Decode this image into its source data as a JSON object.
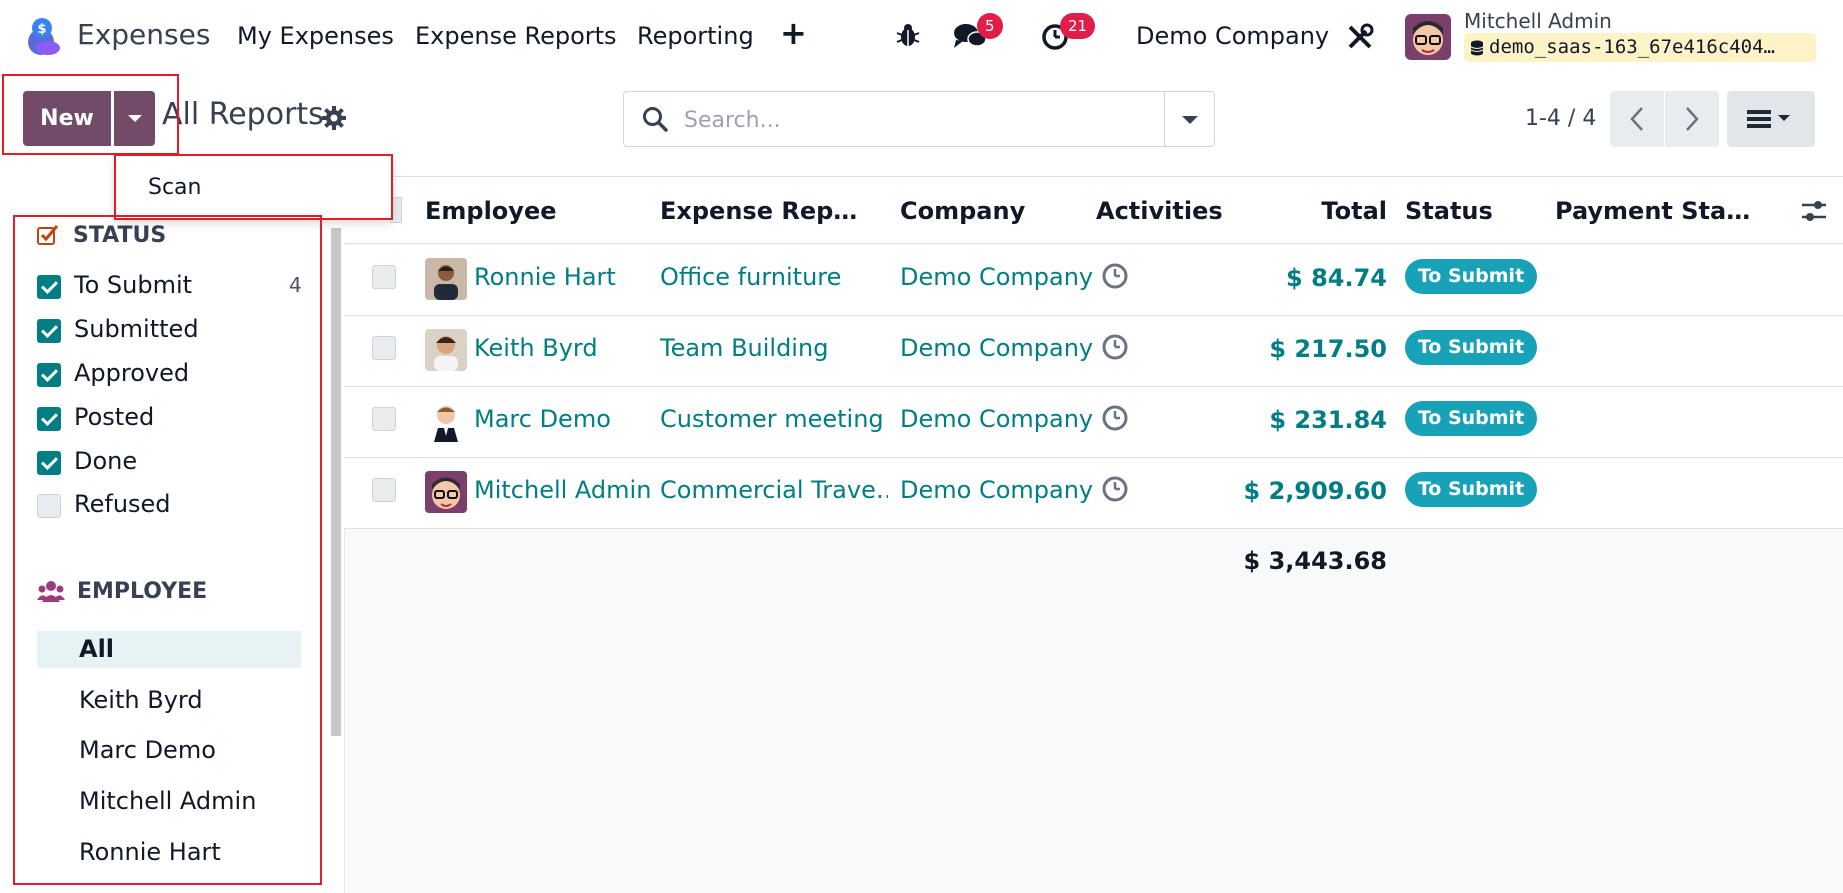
{
  "navbar": {
    "app_name": "Expenses",
    "menus": [
      "My Expenses",
      "Expense Reports",
      "Reporting"
    ],
    "plus_icon": "+",
    "chat_badge": "5",
    "activity_badge": "21",
    "company": "Demo Company",
    "user_name": "Mitchell Admin",
    "database": "demo_saas-163_67e416c404…"
  },
  "control_panel": {
    "new_label": "New",
    "breadcrumb": "All Reports",
    "scan_label": "Scan",
    "search_placeholder": "Search...",
    "pager": "1-4 / 4"
  },
  "sidebar": {
    "status_heading": "STATUS",
    "statuses": [
      {
        "label": "To Submit",
        "count": "4",
        "checked": true
      },
      {
        "label": "Submitted",
        "checked": true
      },
      {
        "label": "Approved",
        "checked": true
      },
      {
        "label": "Posted",
        "checked": true
      },
      {
        "label": "Done",
        "checked": true
      },
      {
        "label": "Refused",
        "checked": false
      }
    ],
    "employee_heading": "EMPLOYEE",
    "employees": [
      "All",
      "Keith Byrd",
      "Marc Demo",
      "Mitchell Admin",
      "Ronnie Hart"
    ]
  },
  "table": {
    "columns": [
      "Employee",
      "Expense Rep…",
      "Company",
      "Activities",
      "Total",
      "Status",
      "Payment Sta…"
    ],
    "rows": [
      {
        "employee": "Ronnie Hart",
        "report": "Office furniture",
        "company": "Demo Company",
        "total": "$ 84.74",
        "status": "To Submit"
      },
      {
        "employee": "Keith Byrd",
        "report": "Team Building",
        "company": "Demo Company",
        "total": "$ 217.50",
        "status": "To Submit"
      },
      {
        "employee": "Marc Demo",
        "report": "Customer meeting",
        "company": "Demo Company",
        "total": "$ 231.84",
        "status": "To Submit"
      },
      {
        "employee": "Mitchell Admin",
        "report": "Commercial Trave…",
        "company": "Demo Company",
        "total": "$ 2,909.60",
        "status": "To Submit"
      }
    ],
    "grand_total": "$ 3,443.68"
  },
  "colors": {
    "primary": "#714b67",
    "link": "#017e84",
    "status_pill": "#17a2b8",
    "badge": "#e11d48",
    "highlight_box": "#e11d2a"
  }
}
